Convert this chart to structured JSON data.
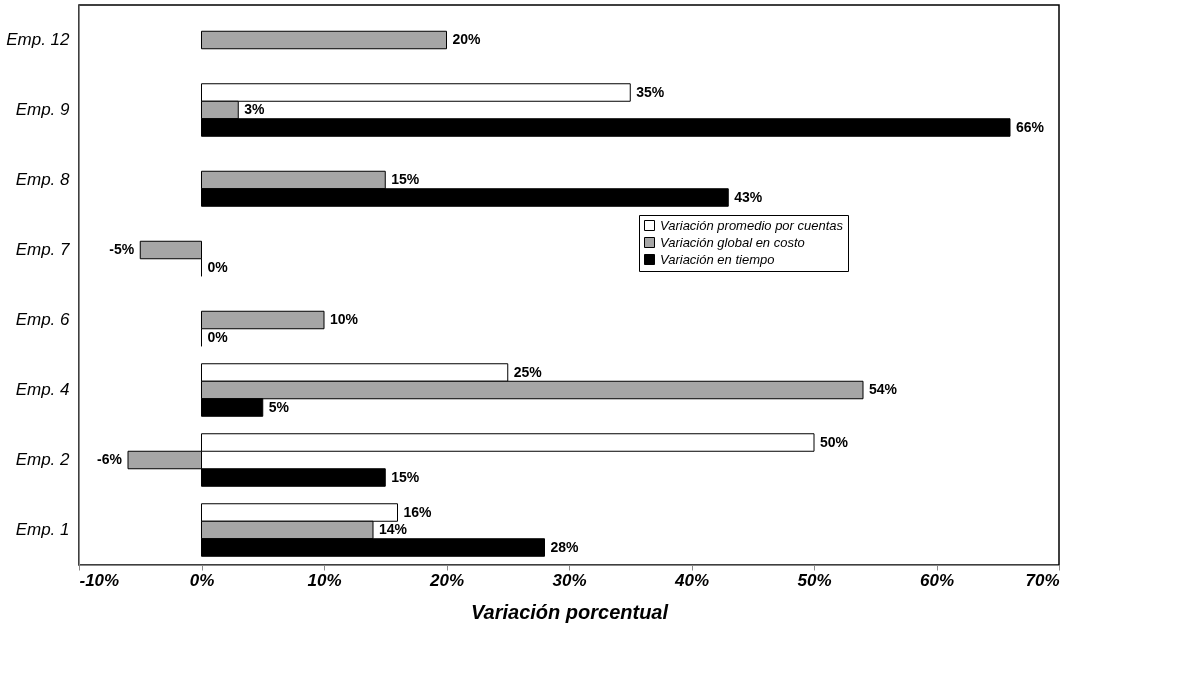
{
  "chart_data": {
    "type": "bar",
    "orientation": "horizontal",
    "xlabel": "Variación porcentual",
    "categories": [
      "Emp. 12",
      "Emp. 9",
      "Emp. 8",
      "Emp. 7",
      "Emp. 6",
      "Emp. 4",
      "Emp. 2",
      "Emp. 1"
    ],
    "series": [
      {
        "name": "Variación promedio por cuentas",
        "color": "#ffffff",
        "values": [
          null,
          35,
          null,
          null,
          null,
          25,
          50,
          16
        ],
        "value_labels": [
          null,
          "35%",
          null,
          null,
          null,
          "25%",
          "50%",
          "16%"
        ]
      },
      {
        "name": "Variación global en costo",
        "color": "#a6a6a6",
        "values": [
          20,
          3,
          15,
          -5,
          10,
          54,
          -6,
          14
        ],
        "value_labels": [
          "20%",
          "3%",
          "15%",
          "-5%",
          "10%",
          "54%",
          "-6%",
          "14%"
        ]
      },
      {
        "name": "Variación en tiempo",
        "color": "#000000",
        "values": [
          null,
          66,
          43,
          0,
          0,
          5,
          15,
          28
        ],
        "value_labels": [
          null,
          "66%",
          "43%",
          "0%",
          "0%",
          "5%",
          "15%",
          "28%"
        ]
      }
    ],
    "xlim": [
      -10,
      70
    ],
    "xticks": [
      {
        "value": -10,
        "label": "-10%"
      },
      {
        "value": 0,
        "label": "0%"
      },
      {
        "value": 10,
        "label": "10%"
      },
      {
        "value": 20,
        "label": "20%"
      },
      {
        "value": 30,
        "label": "30%"
      },
      {
        "value": 40,
        "label": "40%"
      },
      {
        "value": 50,
        "label": "50%"
      },
      {
        "value": 60,
        "label": "60%"
      },
      {
        "value": 70,
        "label": "70%"
      }
    ],
    "grid": false,
    "legend": "right"
  }
}
